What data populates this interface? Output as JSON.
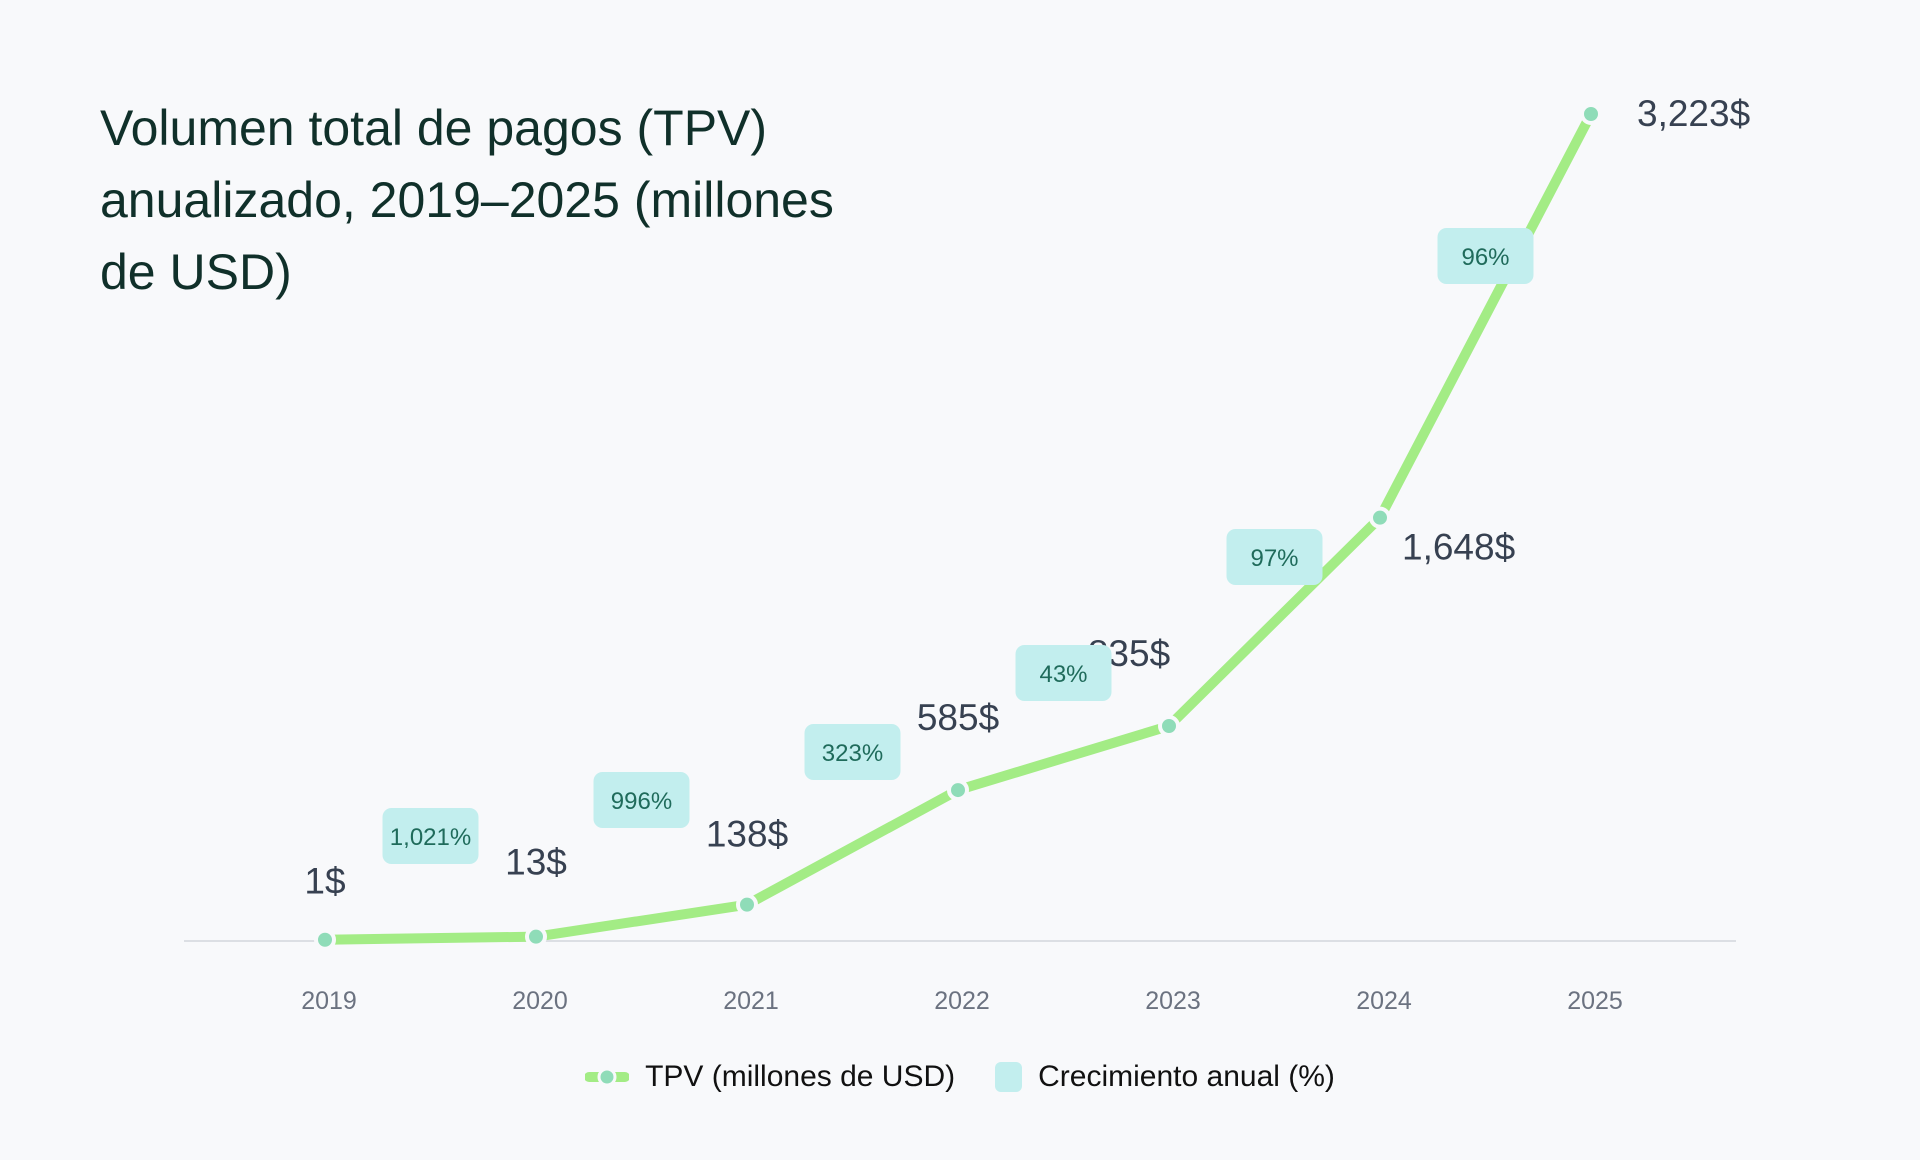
{
  "chart_data": {
    "type": "line",
    "title": "Volumen total de pagos (TPV) anualizado, 2019–2025 (millones de USD)",
    "categories": [
      "2019",
      "2020",
      "2021",
      "2022",
      "2023",
      "2024",
      "2025"
    ],
    "series": [
      {
        "name": "TPV (millones de USD)",
        "values": [
          1,
          13,
          138,
          585,
          835,
          1648,
          3223
        ],
        "labels": [
          "1$",
          "13$",
          "138$",
          "585$",
          "835$",
          "1,648$",
          "3,223$"
        ],
        "color": "#a3ec85"
      }
    ],
    "growth": {
      "name": "Crecimiento anual (%)",
      "values": [
        1021,
        996,
        323,
        43,
        97,
        96
      ],
      "labels": [
        "1,021%",
        "996%",
        "323%",
        "43%",
        "97%",
        "96%"
      ],
      "color": "#c2eeee"
    },
    "ylim": [
      0,
      3223
    ],
    "grid": false,
    "legend": "bottom"
  },
  "legend": {
    "tpv": "TPV (millones de USD)",
    "growth": "Crecimiento anual (%)"
  }
}
